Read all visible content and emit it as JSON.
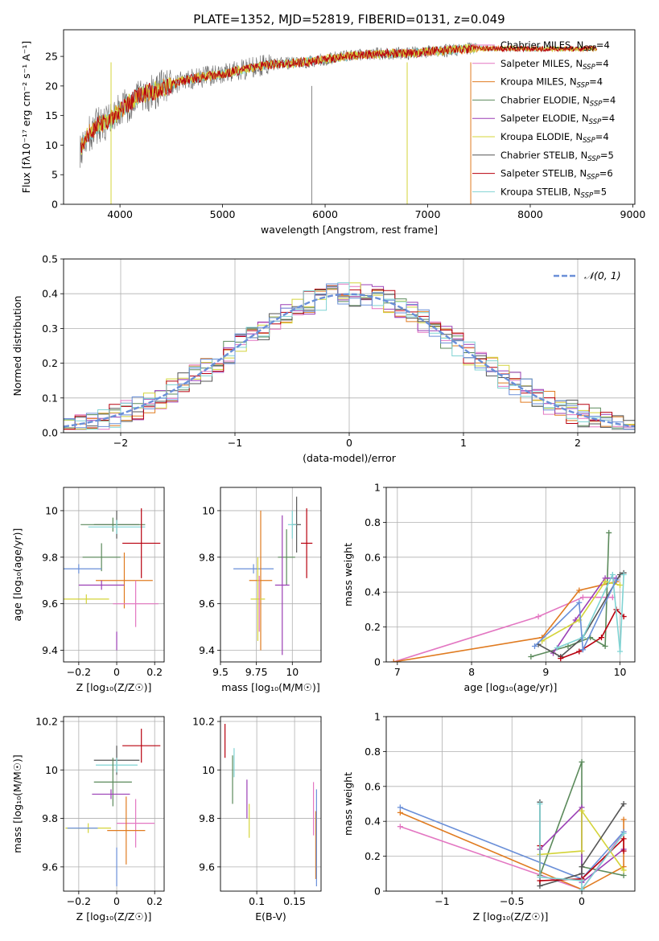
{
  "title": "PLATE=1352, MJD=52819, FIBERID=0131, z=0.049",
  "legend_entries": [
    {
      "text": "Chabrier MILES, N",
      "sub": "SSP",
      "tail": "=4",
      "color": "#e377c2"
    },
    {
      "text": "Salpeter MILES, N",
      "sub": "SSP",
      "tail": "=4",
      "color": "#e377c2"
    },
    {
      "text": "Kroupa MILES, N",
      "sub": "SSP",
      "tail": "=4",
      "color": "#e07b20"
    },
    {
      "text": "Chabrier ELODIE, N",
      "sub": "SSP",
      "tail": "=4",
      "color": "#5b8a5b"
    },
    {
      "text": "Salpeter ELODIE, N",
      "sub": "SSP",
      "tail": "=4",
      "color": "#9b3fb5"
    },
    {
      "text": "Kroupa ELODIE, N",
      "sub": "SSP",
      "tail": "=4",
      "color": "#d4d43a"
    },
    {
      "text": "Chabrier STELIB, N",
      "sub": "SSP",
      "tail": "=5",
      "color": "#555555"
    },
    {
      "text": "Salpeter STELIB, N",
      "sub": "SSP",
      "tail": "=6",
      "color": "#b8000e"
    },
    {
      "text": "Kroupa STELIB, N",
      "sub": "SSP",
      "tail": "=5",
      "color": "#7fd3d3"
    }
  ],
  "model_colors": [
    "#e377c2",
    "#e07b20",
    "#5b8a5b",
    "#9b3fb5",
    "#d4d43a",
    "#555555",
    "#b8000e",
    "#7fd3d3",
    "#6a8fd8"
  ],
  "chart_data": [
    {
      "type": "line",
      "id": "spectrum",
      "xlabel": "wavelength [Angstrom, rest frame]",
      "ylabel": "Flux [fλ10⁻¹⁷ erg cm⁻² s⁻¹ A⁻¹]",
      "xlim": [
        3450,
        9020
      ],
      "ylim": [
        0,
        29.5
      ],
      "xticks": [
        4000,
        5000,
        6000,
        7000,
        8000,
        9000
      ],
      "yticks": [
        0,
        5,
        10,
        15,
        20,
        25
      ],
      "continuum": {
        "x": [
          3600,
          3700,
          3800,
          3900,
          4000,
          4200,
          4400,
          4600,
          4800,
          5000,
          5200,
          5400,
          5600,
          5800,
          6000,
          6200,
          6400,
          6600,
          6800,
          7000,
          7200,
          7400,
          7550
        ],
        "y": [
          9,
          12,
          13.5,
          14,
          16,
          18.5,
          19.5,
          20.8,
          21.5,
          22,
          22.8,
          23.5,
          23.8,
          24,
          24.5,
          25,
          25.3,
          25.5,
          25.5,
          25.8,
          26,
          26.3,
          26.5
        ]
      },
      "data_end_x": 7480,
      "model_end_x": 8650,
      "dips": [
        3913,
        5870,
        6800,
        7420
      ]
    },
    {
      "type": "line",
      "id": "residual-hist",
      "xlabel": "(data-model)/error",
      "ylabel": "Normed distribution",
      "xlim": [
        -2.5,
        2.5
      ],
      "ylim": [
        0,
        0.5
      ],
      "xticks": [
        -2,
        -1,
        0,
        1,
        2
      ],
      "yticks": [
        0.0,
        0.1,
        0.2,
        0.3,
        0.4,
        0.5
      ],
      "legend": "𝒩(0, 1)",
      "gaussian": {
        "mu": 0,
        "sigma": 1,
        "color": "#6a8fd8"
      },
      "bin_width": 0.1
    },
    {
      "type": "scatter",
      "id": "age-vs-z",
      "xlabel": "Z [log₁₀(Z/Z☉)]",
      "ylabel": "age  [log₁₀(age/yr)]",
      "xlim": [
        -0.28,
        0.25
      ],
      "ylim": [
        9.35,
        10.1
      ],
      "xticks": [
        -0.2,
        0.0,
        0.2
      ],
      "yticks": [
        9.4,
        9.6,
        9.8,
        10.0
      ],
      "points": [
        {
          "x": 0.0,
          "y": 9.94,
          "xerr": 0.12,
          "yerr": 0.06,
          "color": "#555555"
        },
        {
          "x": -0.02,
          "y": 9.94,
          "xerr": 0.17,
          "yerr": 0.03,
          "color": "#5b8a5b"
        },
        {
          "x": 0.0,
          "y": 9.93,
          "xerr": 0.15,
          "yerr": 0.03,
          "color": "#7fd3d3"
        },
        {
          "x": 0.13,
          "y": 9.86,
          "xerr": 0.1,
          "yerr": 0.15,
          "color": "#b8000e"
        },
        {
          "x": -0.08,
          "y": 9.8,
          "xerr": 0.1,
          "yerr": 0.06,
          "color": "#5b8a5b"
        },
        {
          "x": -0.2,
          "y": 9.75,
          "xerr": 0.12,
          "yerr": 0.02,
          "color": "#6a8fd8"
        },
        {
          "x": 0.04,
          "y": 9.7,
          "xerr": 0.15,
          "yerr": 0.12,
          "color": "#e07b20"
        },
        {
          "x": -0.08,
          "y": 9.68,
          "xerr": 0.12,
          "yerr": 0.02,
          "color": "#9b3fb5"
        },
        {
          "x": -0.16,
          "y": 9.62,
          "xerr": 0.12,
          "yerr": 0.02,
          "color": "#d4d43a"
        },
        {
          "x": 0.1,
          "y": 9.6,
          "xerr": 0.12,
          "yerr": 0.1,
          "color": "#e377c2"
        },
        {
          "x": 0.0,
          "y": 9.44,
          "xerr": 0.0,
          "yerr": 0.04,
          "color": "#9b3fb5"
        }
      ]
    },
    {
      "type": "scatter",
      "id": "age-vs-mass",
      "xlabel": "mass [log₁₀(M/M☉)]",
      "ylabel": "",
      "xlim": [
        9.5,
        10.2
      ],
      "ylim": [
        9.35,
        10.1
      ],
      "xticks": [
        9.5,
        9.75,
        10.0
      ],
      "yticks": [
        9.4,
        9.6,
        9.8,
        10.0
      ],
      "points": [
        {
          "x": 10.03,
          "y": 9.94,
          "xerr": 0.03,
          "yerr": 0.12,
          "color": "#555555"
        },
        {
          "x": 10.0,
          "y": 9.94,
          "xerr": 0.03,
          "yerr": 0.06,
          "color": "#7fd3d3"
        },
        {
          "x": 10.1,
          "y": 9.86,
          "xerr": 0.04,
          "yerr": 0.15,
          "color": "#b8000e"
        },
        {
          "x": 9.96,
          "y": 9.8,
          "xerr": 0.06,
          "yerr": 0.12,
          "color": "#5b8a5b"
        },
        {
          "x": 9.73,
          "y": 9.75,
          "xerr": 0.14,
          "yerr": 0.02,
          "color": "#6a8fd8"
        },
        {
          "x": 9.78,
          "y": 9.7,
          "xerr": 0.08,
          "yerr": 0.3,
          "color": "#e07b20"
        },
        {
          "x": 9.93,
          "y": 9.68,
          "xerr": 0.05,
          "yerr": 0.3,
          "color": "#9b3fb5"
        },
        {
          "x": 9.76,
          "y": 9.62,
          "xerr": 0.05,
          "yerr": 0.18,
          "color": "#d4d43a"
        },
        {
          "x": 9.77,
          "y": 9.6,
          "xerr": 0.0,
          "yerr": 0.12,
          "color": "#e377c2"
        }
      ]
    },
    {
      "type": "line",
      "id": "mass-weight-vs-age",
      "xlabel": "age  [log₁₀(age/yr)]",
      "ylabel": "mass weight",
      "xlim": [
        6.85,
        10.2
      ],
      "ylim": [
        0,
        1.0
      ],
      "xticks": [
        7,
        8,
        9,
        10
      ],
      "yticks": [
        0.0,
        0.2,
        0.4,
        0.6,
        0.8,
        1.0
      ],
      "series": [
        {
          "color": "#e377c2",
          "x": [
            6.95,
            8.9,
            9.5,
            9.9
          ],
          "y": [
            0.0,
            0.26,
            0.37,
            0.37
          ]
        },
        {
          "color": "#e07b20",
          "x": [
            6.95,
            8.95,
            9.45,
            9.95
          ],
          "y": [
            0.0,
            0.14,
            0.41,
            0.46
          ]
        },
        {
          "color": "#5b8a5b",
          "x": [
            8.8,
            9.3,
            9.6,
            9.8,
            9.85
          ],
          "y": [
            0.03,
            0.09,
            0.14,
            0.09,
            0.74
          ]
        },
        {
          "color": "#9b3fb5",
          "x": [
            9.1,
            9.4,
            9.8,
            9.95
          ],
          "y": [
            0.05,
            0.24,
            0.48,
            0.48
          ]
        },
        {
          "color": "#d4d43a",
          "x": [
            8.95,
            9.45,
            9.8,
            10.0
          ],
          "y": [
            0.12,
            0.24,
            0.46,
            0.44
          ]
        },
        {
          "color": "#555555",
          "x": [
            8.9,
            9.2,
            9.5,
            10.0,
            10.05
          ],
          "y": [
            0.1,
            0.03,
            0.14,
            0.5,
            0.51
          ]
        },
        {
          "color": "#b8000e",
          "x": [
            9.2,
            9.45,
            9.75,
            9.95,
            10.05
          ],
          "y": [
            0.02,
            0.06,
            0.14,
            0.3,
            0.26
          ]
        },
        {
          "color": "#7fd3d3",
          "x": [
            9.15,
            9.5,
            9.9,
            10.0,
            10.05
          ],
          "y": [
            0.08,
            0.14,
            0.5,
            0.06,
            0.5
          ]
        },
        {
          "color": "#6a8fd8",
          "x": [
            8.85,
            9.45,
            9.5,
            9.95
          ],
          "y": [
            0.09,
            0.34,
            0.07,
            0.47
          ]
        }
      ]
    },
    {
      "type": "scatter",
      "id": "mass-vs-z",
      "xlabel": "Z [log₁₀(Z/Z☉)]",
      "ylabel": "mass [log₁₀(M/M☉)]",
      "xlim": [
        -0.28,
        0.25
      ],
      "ylim": [
        9.5,
        10.22
      ],
      "xticks": [
        -0.2,
        0.0,
        0.2
      ],
      "yticks": [
        9.6,
        9.8,
        10.0,
        10.2
      ],
      "points": [
        {
          "x": 0.13,
          "y": 10.1,
          "xerr": 0.1,
          "yerr": 0.07,
          "color": "#b8000e"
        },
        {
          "x": 0.0,
          "y": 10.04,
          "xerr": 0.12,
          "yerr": 0.06,
          "color": "#555555"
        },
        {
          "x": 0.0,
          "y": 10.02,
          "xerr": 0.11,
          "yerr": 0.03,
          "color": "#7fd3d3"
        },
        {
          "x": -0.02,
          "y": 9.95,
          "xerr": 0.1,
          "yerr": 0.1,
          "color": "#5b8a5b"
        },
        {
          "x": -0.03,
          "y": 9.9,
          "xerr": 0.1,
          "yerr": 0.02,
          "color": "#9b3fb5"
        },
        {
          "x": 0.1,
          "y": 9.78,
          "xerr": 0.1,
          "yerr": 0.1,
          "color": "#e377c2"
        },
        {
          "x": -0.15,
          "y": 9.76,
          "xerr": 0.12,
          "yerr": 0.02,
          "color": "#d4d43a"
        },
        {
          "x": 0.05,
          "y": 9.75,
          "xerr": 0.1,
          "yerr": 0.14,
          "color": "#e07b20"
        },
        {
          "x": -0.18,
          "y": 9.76,
          "xerr": 0.08,
          "yerr": 0.0,
          "color": "#6a8fd8"
        },
        {
          "x": 0.0,
          "y": 9.6,
          "xerr": 0.0,
          "yerr": 0.08,
          "color": "#6a8fd8"
        }
      ]
    },
    {
      "type": "scatter",
      "id": "mass-vs-ebv",
      "xlabel": "E(B-V)",
      "ylabel": "",
      "xlim": [
        0.052,
        0.185
      ],
      "ylim": [
        9.5,
        10.22
      ],
      "xticks": [
        0.1,
        0.15
      ],
      "yticks": [
        9.6,
        9.8,
        10.0,
        10.2
      ],
      "points": [
        {
          "x": 0.058,
          "y": 10.12,
          "xerr": 0.0,
          "yerr": 0.07,
          "color": "#b8000e"
        },
        {
          "x": 0.068,
          "y": 9.96,
          "xerr": 0.0,
          "yerr": 0.1,
          "color": "#5b8a5b"
        },
        {
          "x": 0.07,
          "y": 10.03,
          "xerr": 0.0,
          "yerr": 0.06,
          "color": "#7fd3d3"
        },
        {
          "x": 0.087,
          "y": 9.88,
          "xerr": 0.0,
          "yerr": 0.08,
          "color": "#9b3fb5"
        },
        {
          "x": 0.09,
          "y": 9.79,
          "xerr": 0.0,
          "yerr": 0.07,
          "color": "#d4d43a"
        },
        {
          "x": 0.175,
          "y": 9.84,
          "xerr": 0.0,
          "yerr": 0.11,
          "color": "#e377c2"
        },
        {
          "x": 0.178,
          "y": 9.69,
          "xerr": 0.0,
          "yerr": 0.14,
          "color": "#e07b20"
        },
        {
          "x": 0.179,
          "y": 9.72,
          "xerr": 0.0,
          "yerr": 0.2,
          "color": "#6a8fd8"
        }
      ]
    },
    {
      "type": "line",
      "id": "mass-weight-vs-z",
      "xlabel": "Z [log₁₀(Z/Z☉)]",
      "ylabel": "mass weight",
      "xlim": [
        -1.4,
        0.38
      ],
      "ylim": [
        0,
        1.0
      ],
      "xticks": [
        -1.0,
        -0.5,
        0.0
      ],
      "yticks": [
        0.0,
        0.2,
        0.4,
        0.6,
        0.8,
        1.0
      ],
      "series": [
        {
          "color": "#e377c2",
          "x": [
            -1.3,
            0.0,
            0.3
          ],
          "y": [
            0.37,
            0.01,
            0.34
          ]
        },
        {
          "color": "#e07b20",
          "x": [
            -1.3,
            0.0,
            0.3,
            0.3
          ],
          "y": [
            0.45,
            0.01,
            0.14,
            0.41
          ]
        },
        {
          "color": "#6a8fd8",
          "x": [
            -1.3,
            0.0,
            0.3
          ],
          "y": [
            0.48,
            0.07,
            0.34
          ]
        },
        {
          "color": "#5b8a5b",
          "x": [
            -0.3,
            0.0,
            0.0,
            0.3
          ],
          "y": [
            0.09,
            0.74,
            0.14,
            0.09
          ]
        },
        {
          "color": "#9b3fb5",
          "x": [
            -0.3,
            0.0,
            0.0,
            0.3
          ],
          "y": [
            0.24,
            0.48,
            0.05,
            0.24
          ]
        },
        {
          "color": "#d4d43a",
          "x": [
            -0.3,
            0.0,
            0.0,
            0.3
          ],
          "y": [
            0.21,
            0.23,
            0.46,
            0.12
          ]
        },
        {
          "color": "#555555",
          "x": [
            -0.3,
            -0.3,
            0.0,
            0.0,
            0.3
          ],
          "y": [
            0.51,
            0.03,
            0.1,
            0.14,
            0.5
          ]
        },
        {
          "color": "#b8000e",
          "x": [
            -0.3,
            -0.3,
            0.0,
            0.3,
            0.3
          ],
          "y": [
            0.26,
            0.06,
            0.07,
            0.3,
            0.23
          ]
        },
        {
          "color": "#7fd3d3",
          "x": [
            -0.3,
            -0.3,
            0.0,
            0.0,
            0.3
          ],
          "y": [
            0.5,
            0.08,
            0.06,
            0.01,
            0.33
          ]
        }
      ]
    }
  ]
}
